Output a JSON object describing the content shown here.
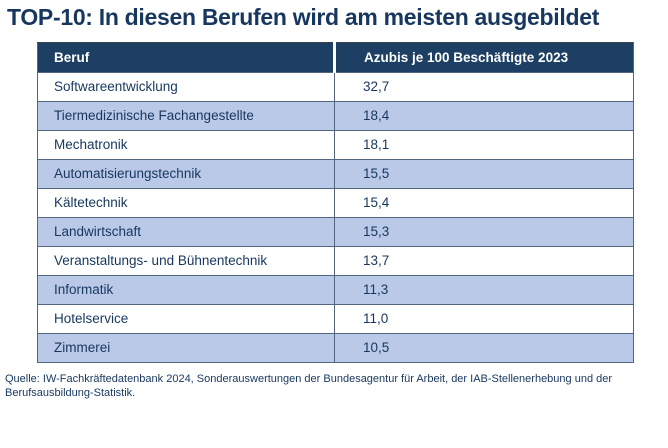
{
  "title": "TOP-10: In diesen Berufen wird am meisten ausgebildet",
  "chart_data": {
    "type": "table",
    "title": "TOP-10: In diesen Berufen wird am meisten ausgebildet",
    "columns": [
      "Beruf",
      "Azubis je 100 Beschäftigte 2023"
    ],
    "rows": [
      [
        "Softwareentwicklung",
        "32,7"
      ],
      [
        "Tiermedizinische Fachangestellte",
        "18,4"
      ],
      [
        "Mechatronik",
        "18,1"
      ],
      [
        "Automatisierungstechnik",
        "15,5"
      ],
      [
        "Kältetechnik",
        "15,4"
      ],
      [
        "Landwirtschaft",
        "15,3"
      ],
      [
        "Veranstaltungs- und Bühnentechnik",
        "13,7"
      ],
      [
        "Informatik",
        "11,3"
      ],
      [
        "Hotelservice",
        "11,0"
      ],
      [
        "Zimmerei",
        "10,5"
      ]
    ],
    "source": "Quelle: IW-Fachkräftedatenbank 2024, Sonderauswertungen der Bundesagentur für Arbeit, der IAB-Stellenerhebung und der Berufsausbildung-Statistik."
  },
  "colors": {
    "title_text": "#17375e",
    "header_bg": "#1d3f63",
    "header_text": "#ffffff",
    "row_bg": "#ffffff",
    "row_alt_bg": "#bac9e8",
    "body_text": "#17375e",
    "border": "#54657e"
  }
}
